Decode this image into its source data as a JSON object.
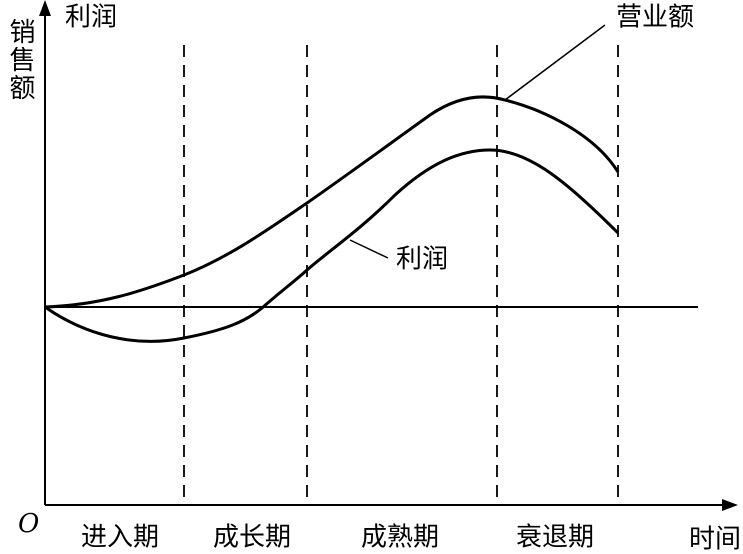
{
  "axes": {
    "y_label_top": "利润",
    "y_label_side": "销售额",
    "origin": "O",
    "x_label": "时间"
  },
  "stages": [
    "进入期",
    "成长期",
    "成熟期",
    "衰退期"
  ],
  "curves": [
    {
      "label": "营业额"
    },
    {
      "label": "利润"
    }
  ]
}
